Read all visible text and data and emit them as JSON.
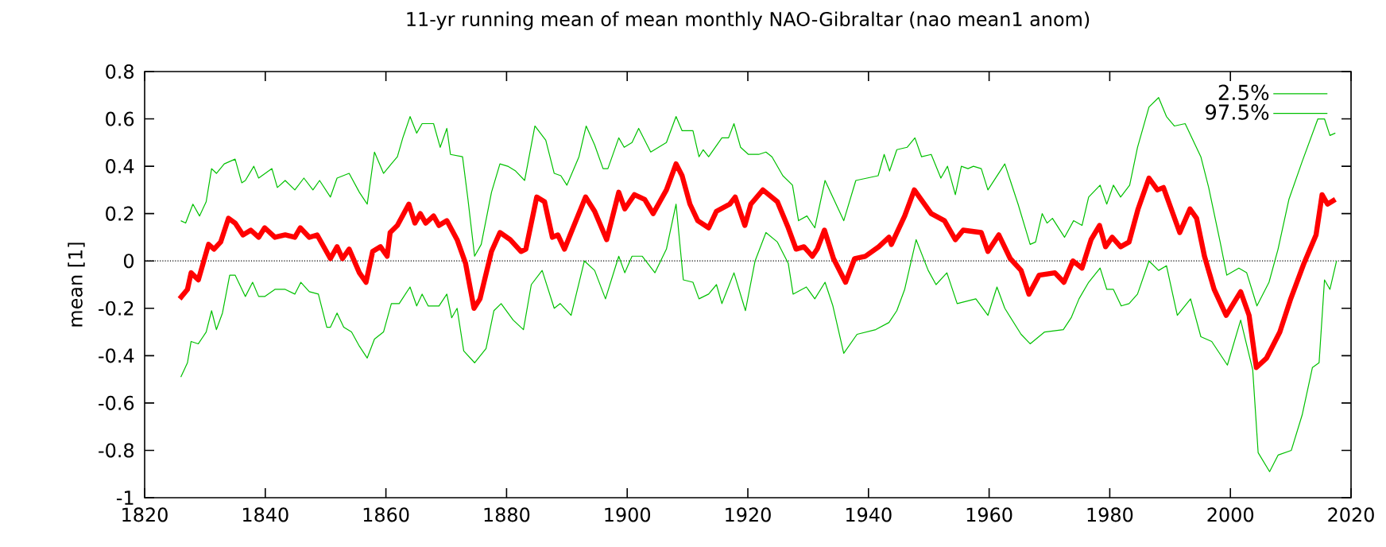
{
  "chart_data": {
    "type": "line",
    "title": "11-yr running mean of mean monthly NAO-Gibraltar (nao mean1 anom)",
    "ylabel": "mean [1]",
    "xlim": [
      1820,
      2020
    ],
    "xticks": [
      1820,
      1840,
      1860,
      1880,
      1900,
      1920,
      1940,
      1960,
      1980,
      2000,
      2020
    ],
    "ylim": [
      -1,
      0.8
    ],
    "yticks": [
      -1,
      -0.8,
      -0.6,
      -0.4,
      -0.2,
      0,
      0.2,
      0.4,
      0.6,
      0.8
    ],
    "legend": "top right",
    "marker": "none",
    "grid": false,
    "ref_lines": [
      {
        "axis": "y",
        "value": 0,
        "color": "#000000",
        "line_style": "dotted"
      }
    ],
    "series": [
      {
        "name": "2.5%",
        "color": "#00c000",
        "x": [
          1826.0,
          1827.1,
          1827.7,
          1828.9,
          1830.2,
          1831.1,
          1831.9,
          1832.9,
          1834.1,
          1835.0,
          1836.7,
          1837.9,
          1838.9,
          1839.9,
          1841.6,
          1843.3,
          1844.9,
          1845.9,
          1847.3,
          1848.8,
          1850.2,
          1850.8,
          1851.9,
          1853.0,
          1854.3,
          1855.6,
          1856.9,
          1858.1,
          1859.6,
          1860.9,
          1862.2,
          1864.0,
          1865.1,
          1866.0,
          1867.0,
          1868.8,
          1870.1,
          1870.9,
          1871.8,
          1872.9,
          1874.7,
          1876.6,
          1877.9,
          1879.1,
          1881.1,
          1882.8,
          1884.1,
          1885.9,
          1887.9,
          1888.9,
          1890.7,
          1892.9,
          1894.6,
          1896.4,
          1898.6,
          1899.6,
          1900.8,
          1902.5,
          1904.6,
          1906.5,
          1908.1,
          1909.3,
          1910.9,
          1911.9,
          1913.5,
          1914.8,
          1915.7,
          1917.7,
          1919.6,
          1921.2,
          1923.0,
          1924.9,
          1926.7,
          1927.5,
          1929.7,
          1931.1,
          1932.8,
          1934.1,
          1935.9,
          1938.1,
          1941.2,
          1943.4,
          1944.7,
          1946.0,
          1947.9,
          1949.9,
          1951.2,
          1953.0,
          1954.7,
          1957.8,
          1959.8,
          1961.3,
          1962.6,
          1965.3,
          1966.8,
          1969.2,
          1972.3,
          1973.6,
          1974.9,
          1976.5,
          1978.4,
          1979.5,
          1980.6,
          1981.9,
          1983.2,
          1984.6,
          1986.5,
          1988.1,
          1989.4,
          1991.2,
          1993.4,
          1995.1,
          1996.9,
          1999.5,
          2001.7,
          2003.7,
          2004.6,
          2006.5,
          2007.9,
          2010.1,
          2011.9,
          2013.6,
          2014.7,
          2015.6,
          2016.5,
          2017.6
        ],
        "values": [
          -0.49,
          -0.43,
          -0.34,
          -0.35,
          -0.3,
          -0.21,
          -0.29,
          -0.22,
          -0.06,
          -0.06,
          -0.15,
          -0.09,
          -0.15,
          -0.15,
          -0.12,
          -0.12,
          -0.14,
          -0.09,
          -0.13,
          -0.14,
          -0.28,
          -0.28,
          -0.22,
          -0.28,
          -0.3,
          -0.36,
          -0.41,
          -0.33,
          -0.3,
          -0.18,
          -0.18,
          -0.11,
          -0.19,
          -0.14,
          -0.19,
          -0.19,
          -0.14,
          -0.24,
          -0.2,
          -0.38,
          -0.43,
          -0.37,
          -0.21,
          -0.18,
          -0.25,
          -0.29,
          -0.1,
          -0.04,
          -0.2,
          -0.18,
          -0.23,
          0.0,
          -0.04,
          -0.16,
          0.02,
          -0.05,
          0.02,
          0.02,
          -0.05,
          0.05,
          0.24,
          -0.08,
          -0.09,
          -0.16,
          -0.14,
          -0.1,
          -0.18,
          -0.05,
          -0.21,
          0.0,
          0.12,
          0.08,
          -0.01,
          -0.14,
          -0.11,
          -0.16,
          -0.09,
          -0.19,
          -0.39,
          -0.31,
          -0.29,
          -0.26,
          -0.21,
          -0.12,
          0.09,
          -0.04,
          -0.1,
          -0.05,
          -0.18,
          -0.16,
          -0.23,
          -0.11,
          -0.2,
          -0.31,
          -0.35,
          -0.3,
          -0.29,
          -0.24,
          -0.16,
          -0.09,
          -0.03,
          -0.12,
          -0.12,
          -0.19,
          -0.18,
          -0.14,
          0.0,
          -0.04,
          -0.02,
          -0.23,
          -0.16,
          -0.32,
          -0.34,
          -0.44,
          -0.25,
          -0.46,
          -0.81,
          -0.89,
          -0.82,
          -0.8,
          -0.65,
          -0.45,
          -0.43,
          -0.08,
          -0.12,
          0.0
        ]
      },
      {
        "name": "97.5%",
        "color": "#00c000",
        "x": [
          1826.0,
          1826.8,
          1828.0,
          1829.1,
          1830.2,
          1831.1,
          1831.9,
          1833.2,
          1835.0,
          1836.1,
          1836.7,
          1838.1,
          1838.9,
          1841.1,
          1842.0,
          1843.3,
          1844.9,
          1846.4,
          1847.9,
          1849.0,
          1850.8,
          1851.9,
          1853.9,
          1855.6,
          1856.9,
          1858.1,
          1859.6,
          1860.9,
          1861.9,
          1862.8,
          1864.0,
          1865.1,
          1866.0,
          1867.9,
          1869.0,
          1870.1,
          1870.7,
          1872.7,
          1873.6,
          1874.7,
          1875.8,
          1877.5,
          1878.9,
          1880.2,
          1881.5,
          1883.0,
          1884.7,
          1886.5,
          1887.9,
          1889.0,
          1890.0,
          1892.0,
          1893.2,
          1894.6,
          1896.0,
          1896.8,
          1898.6,
          1899.5,
          1900.8,
          1901.9,
          1903.9,
          1906.5,
          1908.1,
          1909.1,
          1910.9,
          1911.9,
          1912.6,
          1913.5,
          1915.7,
          1916.8,
          1917.7,
          1918.8,
          1920.1,
          1921.8,
          1923.0,
          1924.0,
          1925.8,
          1927.4,
          1928.4,
          1929.8,
          1931.1,
          1932.8,
          1935.9,
          1937.9,
          1941.6,
          1942.6,
          1943.5,
          1944.7,
          1946.4,
          1947.7,
          1948.8,
          1950.4,
          1952.0,
          1953.1,
          1954.4,
          1955.4,
          1956.5,
          1957.4,
          1958.7,
          1959.8,
          1962.6,
          1964.8,
          1966.8,
          1967.7,
          1968.8,
          1969.6,
          1970.5,
          1972.5,
          1974.0,
          1975.4,
          1976.5,
          1978.4,
          1979.5,
          1980.6,
          1981.8,
          1983.3,
          1984.6,
          1986.5,
          1988.1,
          1989.4,
          1990.7,
          1992.5,
          1995.1,
          1996.4,
          1998.3,
          1999.4,
          2001.4,
          2002.7,
          2004.4,
          2006.4,
          2007.9,
          2009.7,
          2011.9,
          2014.5,
          2015.6,
          2016.5,
          2017.4
        ],
        "values": [
          0.17,
          0.16,
          0.24,
          0.19,
          0.25,
          0.39,
          0.37,
          0.41,
          0.43,
          0.33,
          0.34,
          0.4,
          0.35,
          0.39,
          0.31,
          0.34,
          0.3,
          0.35,
          0.3,
          0.34,
          0.27,
          0.35,
          0.37,
          0.29,
          0.24,
          0.46,
          0.37,
          0.41,
          0.44,
          0.52,
          0.61,
          0.54,
          0.58,
          0.58,
          0.48,
          0.56,
          0.45,
          0.44,
          0.26,
          0.02,
          0.07,
          0.29,
          0.41,
          0.4,
          0.38,
          0.34,
          0.57,
          0.51,
          0.37,
          0.36,
          0.32,
          0.44,
          0.57,
          0.49,
          0.39,
          0.39,
          0.52,
          0.48,
          0.5,
          0.56,
          0.46,
          0.5,
          0.61,
          0.55,
          0.55,
          0.44,
          0.47,
          0.44,
          0.52,
          0.52,
          0.58,
          0.48,
          0.45,
          0.45,
          0.46,
          0.44,
          0.36,
          0.32,
          0.17,
          0.19,
          0.14,
          0.34,
          0.17,
          0.34,
          0.36,
          0.45,
          0.38,
          0.47,
          0.48,
          0.52,
          0.44,
          0.45,
          0.35,
          0.4,
          0.28,
          0.4,
          0.39,
          0.4,
          0.39,
          0.3,
          0.41,
          0.24,
          0.07,
          0.08,
          0.2,
          0.16,
          0.18,
          0.1,
          0.17,
          0.15,
          0.27,
          0.32,
          0.24,
          0.32,
          0.27,
          0.32,
          0.48,
          0.65,
          0.69,
          0.61,
          0.57,
          0.58,
          0.44,
          0.31,
          0.08,
          -0.06,
          -0.03,
          -0.05,
          -0.19,
          -0.09,
          0.05,
          0.26,
          0.42,
          0.6,
          0.6,
          0.53,
          0.54
        ]
      },
      {
        "color": "#ff0000",
        "x": [
          1825.8,
          1827.1,
          1827.7,
          1828.9,
          1830.6,
          1831.5,
          1832.6,
          1833.9,
          1835.0,
          1836.3,
          1837.6,
          1838.9,
          1839.9,
          1841.6,
          1843.3,
          1844.9,
          1845.8,
          1847.3,
          1848.6,
          1850.8,
          1851.9,
          1852.8,
          1853.9,
          1855.6,
          1856.7,
          1857.8,
          1859.1,
          1860.2,
          1860.7,
          1861.9,
          1863.8,
          1864.8,
          1865.7,
          1866.6,
          1867.9,
          1868.8,
          1870.1,
          1871.8,
          1873.2,
          1874.6,
          1875.6,
          1877.5,
          1878.9,
          1880.6,
          1882.4,
          1883.2,
          1885.0,
          1886.3,
          1887.6,
          1888.5,
          1889.6,
          1890.7,
          1893.1,
          1894.6,
          1896.6,
          1898.6,
          1899.6,
          1901.2,
          1902.9,
          1904.3,
          1906.5,
          1908.1,
          1909.1,
          1910.4,
          1911.7,
          1913.5,
          1914.8,
          1917.0,
          1917.9,
          1919.5,
          1920.5,
          1922.5,
          1924.9,
          1926.7,
          1928.0,
          1929.3,
          1930.7,
          1931.5,
          1932.7,
          1934.2,
          1936.2,
          1937.7,
          1939.5,
          1941.7,
          1943.4,
          1943.8,
          1946.0,
          1947.6,
          1950.4,
          1952.6,
          1954.4,
          1955.7,
          1958.7,
          1959.8,
          1961.6,
          1963.5,
          1965.3,
          1966.6,
          1968.3,
          1970.9,
          1972.4,
          1973.9,
          1975.4,
          1976.9,
          1978.3,
          1979.3,
          1980.4,
          1981.8,
          1983.2,
          1984.7,
          1986.5,
          1987.9,
          1988.9,
          1991.6,
          1993.3,
          1994.4,
          1995.7,
          1997.3,
          1999.3,
          2001.7,
          2003.1,
          2004.3,
          2006.0,
          2008.2,
          2010.0,
          2012.2,
          2014.2,
          2015.2,
          2016.1,
          2017.4
        ],
        "values": [
          -0.16,
          -0.12,
          -0.05,
          -0.08,
          0.07,
          0.05,
          0.08,
          0.18,
          0.16,
          0.11,
          0.13,
          0.1,
          0.14,
          0.1,
          0.11,
          0.1,
          0.14,
          0.1,
          0.11,
          0.01,
          0.06,
          0.01,
          0.05,
          -0.05,
          -0.09,
          0.04,
          0.06,
          0.02,
          0.12,
          0.15,
          0.24,
          0.16,
          0.2,
          0.16,
          0.19,
          0.15,
          0.17,
          0.09,
          -0.01,
          -0.2,
          -0.16,
          0.04,
          0.12,
          0.09,
          0.04,
          0.05,
          0.27,
          0.25,
          0.1,
          0.11,
          0.05,
          0.12,
          0.27,
          0.21,
          0.09,
          0.29,
          0.22,
          0.28,
          0.26,
          0.2,
          0.3,
          0.41,
          0.36,
          0.24,
          0.17,
          0.14,
          0.21,
          0.24,
          0.27,
          0.15,
          0.24,
          0.3,
          0.25,
          0.14,
          0.05,
          0.06,
          0.02,
          0.05,
          0.13,
          0.01,
          -0.09,
          0.01,
          0.02,
          0.06,
          0.1,
          0.07,
          0.19,
          0.3,
          0.2,
          0.17,
          0.09,
          0.13,
          0.12,
          0.04,
          0.11,
          0.01,
          -0.04,
          -0.14,
          -0.06,
          -0.05,
          -0.09,
          0.0,
          -0.03,
          0.09,
          0.15,
          0.06,
          0.1,
          0.06,
          0.08,
          0.22,
          0.35,
          0.3,
          0.31,
          0.12,
          0.22,
          0.18,
          0.02,
          -0.12,
          -0.23,
          -0.13,
          -0.23,
          -0.45,
          -0.41,
          -0.3,
          -0.16,
          -0.01,
          0.11,
          0.28,
          0.24,
          0.26
        ]
      }
    ]
  }
}
